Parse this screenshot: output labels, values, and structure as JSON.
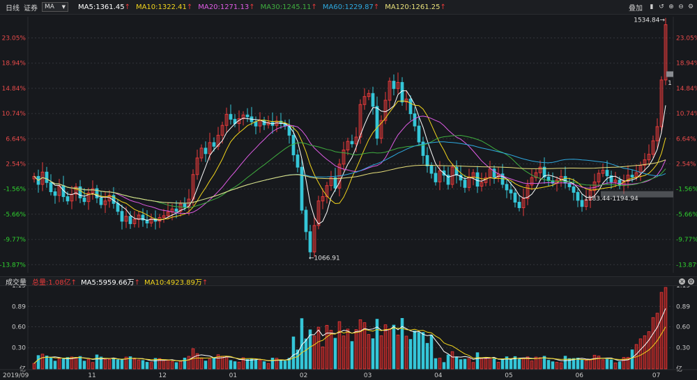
{
  "topbar": {
    "period": "日线",
    "instrument": "证券",
    "indicator_select": "MA",
    "ma5": "MA5:1361.45",
    "ma10": "MA10:1322.41",
    "ma20": "MA20:1271.13",
    "ma30": "MA30:1245.11",
    "ma60": "MA60:1229.87",
    "ma120": "MA120:1261.25",
    "overlay_label": "叠加",
    "colors": {
      "ma5": "#ffffff",
      "ma10": "#f2d51d",
      "ma20": "#e05ce6",
      "ma30": "#3fae3f",
      "ma60": "#2ea9e0",
      "ma120": "#e8e07a"
    }
  },
  "volume_bar": {
    "title": "成交量",
    "total": "总量:1.08亿",
    "ma5": "MA5:5959.66万",
    "ma10": "MA10:4923.89万"
  },
  "colors": {
    "up": "#e83a3a",
    "down": "#35c6d8",
    "bg": "#17191d",
    "grid": "#33363b"
  },
  "chart_data": [
    {
      "type": "candlestick",
      "title": "",
      "y_ticks_pct": [
        "23.05%",
        "18.94%",
        "14.84%",
        "10.74%",
        "6.64%",
        "2.54%",
        "-1.56%",
        "-5.66%",
        "-9.77%",
        "-13.87%"
      ],
      "ylim_pct": [
        -15.2,
        26.5
      ],
      "x_ticks": [
        "2019/09",
        "11",
        "12",
        "01",
        "02",
        "03",
        "04",
        "05",
        "06",
        "07"
      ],
      "annotations": {
        "high": "1534.84",
        "low": "1066.91",
        "range": "1183.44-1194.94",
        "marker": "1"
      },
      "close_pct": [
        0.5,
        -0.8,
        1.2,
        -0.5,
        -2.0,
        -2.6,
        -1.0,
        -2.8,
        -3.5,
        -2.4,
        -1.2,
        -3.0,
        -3.6,
        -2.2,
        -1.5,
        -3.0,
        -4.1,
        -3.5,
        -2.6,
        -3.9,
        -5.2,
        -6.8,
        -6.0,
        -7.2,
        -6.5,
        -5.8,
        -6.6,
        -7.1,
        -6.4,
        -6.8,
        -6.2,
        -5.9,
        -5.3,
        -4.8,
        -5.2,
        -4.0,
        -4.5,
        -3.2,
        0.8,
        3.5,
        5.1,
        4.2,
        6.0,
        5.4,
        7.2,
        8.8,
        10.6,
        9.8,
        9.1,
        9.9,
        10.5,
        10.2,
        9.4,
        8.7,
        9.6,
        8.9,
        9.3,
        8.8,
        9.5,
        9.1,
        8.7,
        7.2,
        4.0,
        2.0,
        -5.0,
        -8.5,
        -11.8,
        -7.5,
        -3.5,
        -2.8,
        -1.0,
        0.3,
        -1.4,
        2.5,
        4.8,
        6.2,
        5.8,
        6.9,
        12.2,
        13.5,
        14.0,
        11.9,
        6.7,
        9.6,
        12.9,
        16.0,
        14.8,
        15.8,
        12.6,
        13.1,
        10.7,
        8.7,
        6.1,
        3.9,
        2.2,
        1.0,
        -0.4,
        1.4,
        0.7,
        -0.8,
        2.0,
        0.7,
        -0.1,
        -1.3,
        0.4,
        1.1,
        -1.1,
        -0.5,
        0.3,
        1.7,
        0.4,
        0.9,
        -0.8,
        -1.7,
        -2.2,
        -3.7,
        -4.6,
        -3.1,
        -0.9,
        0.3,
        1.1,
        2.0,
        0.4,
        -0.2,
        -0.6,
        -0.1,
        0.5,
        -0.6,
        -1.2,
        -2.1,
        -3.4,
        -4.4,
        -3.3,
        -1.8,
        -0.4,
        1.0,
        1.5,
        0.6,
        -0.4,
        -0.1,
        -1.0,
        -0.3,
        0.7,
        0.4,
        1.1,
        2.3,
        3.2,
        4.1,
        6.3,
        8.6,
        16.2,
        25.2
      ],
      "volume_ylim": [
        0,
        1.19
      ],
      "volume_ticks": [
        "1.19",
        "0.89",
        "0.60",
        "0.30",
        "亿"
      ]
    }
  ]
}
